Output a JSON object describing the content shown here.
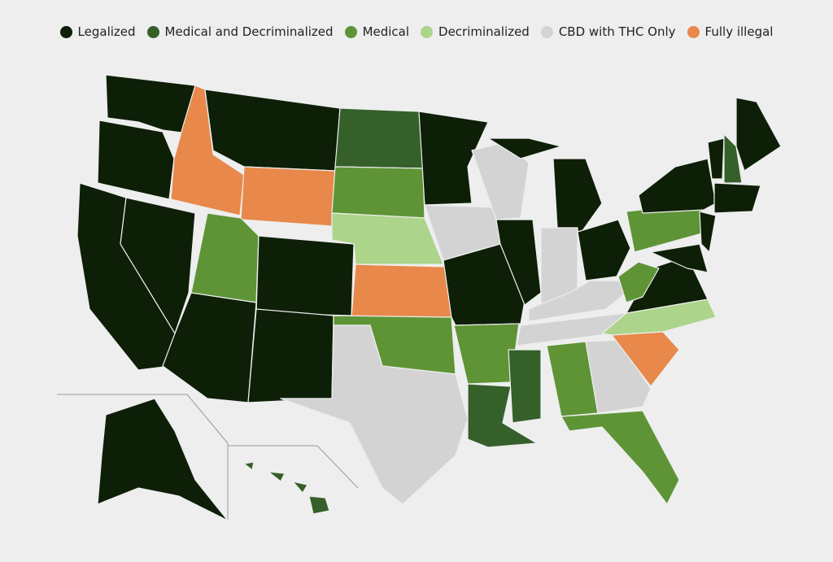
{
  "legend": {
    "items": [
      {
        "label": "Legalized",
        "color": "#0d1f07"
      },
      {
        "label": "Medical and Decriminalized",
        "color": "#35602a"
      },
      {
        "label": "Medical",
        "color": "#5e9436"
      },
      {
        "label": "Decriminalized",
        "color": "#acd48a"
      },
      {
        "label": "CBD with THC Only",
        "color": "#d3d3d3"
      },
      {
        "label": "Fully illegal",
        "color": "#e8884a"
      }
    ]
  }
}
